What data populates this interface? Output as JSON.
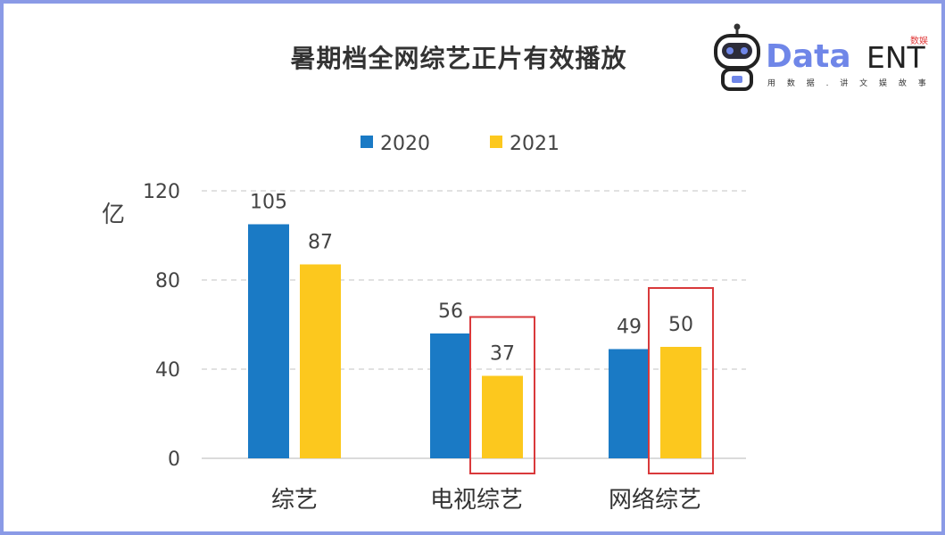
{
  "title": "暑期档全网综艺正片有效播放",
  "logo": {
    "word": "Data",
    "ent": "ENT",
    "badge": "数娱",
    "tagline": "用 数 据 . 讲 文 娱 故 事"
  },
  "colors": {
    "series2020": "#1a7ac5",
    "series2021": "#fcc81e",
    "highlight": "#d9393b",
    "grid": "#cfcfcf",
    "frame": "#8a9ae6"
  },
  "chart_data": {
    "type": "bar",
    "title": "暑期档全网综艺正片有效播放",
    "ylabel": "亿",
    "xlabel": "",
    "categories": [
      "综艺",
      "电视综艺",
      "网络综艺"
    ],
    "series": [
      {
        "name": "2020",
        "values": [
          105,
          56,
          49
        ]
      },
      {
        "name": "2021",
        "values": [
          87,
          37,
          50
        ]
      }
    ],
    "ylim": [
      0,
      120
    ],
    "yticks": [
      0,
      40,
      80,
      120
    ],
    "grid": true,
    "legend": "top",
    "highlighted_bars": [
      {
        "category": "电视综艺",
        "series": "2021"
      },
      {
        "category": "网络综艺",
        "series": "2021"
      }
    ]
  }
}
